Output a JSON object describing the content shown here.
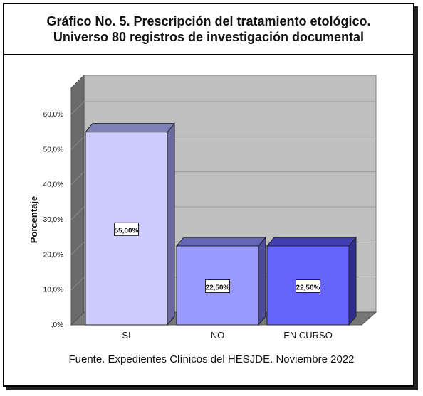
{
  "chart_data": {
    "type": "bar",
    "title_lines": [
      "Gráfico No. 5. Prescripción del tratamiento etológico.",
      "Universo 80 registros de investigación documental"
    ],
    "ylabel": "Porcentaje",
    "xlabel": "",
    "categories": [
      "SI",
      "NO",
      "EN CURSO"
    ],
    "values": [
      55.0,
      22.5,
      22.5
    ],
    "value_labels": [
      "55,00%",
      "22,50%",
      "22,50%"
    ],
    "ylim": [
      0,
      60
    ],
    "y_ticks": [
      0,
      10,
      20,
      30,
      40,
      50,
      60
    ],
    "y_tick_labels": [
      ",0%",
      "10,0%",
      "20,0%",
      "30,0%",
      "40,0%",
      "50,0%",
      "60,0%"
    ],
    "grid": true,
    "three_d": true,
    "bar_colors": [
      {
        "front": "#ccccff",
        "top": "#8080b8",
        "side": "#6a6aa0"
      },
      {
        "front": "#9999ff",
        "top": "#6666b8",
        "side": "#4d4d99"
      },
      {
        "front": "#6666ff",
        "top": "#3f3fb0",
        "side": "#30308c"
      }
    ],
    "plot_background": "#c0c0c0",
    "source": "Fuente. Expedientes Clínicos del HESJDE. Noviembre 2022"
  }
}
